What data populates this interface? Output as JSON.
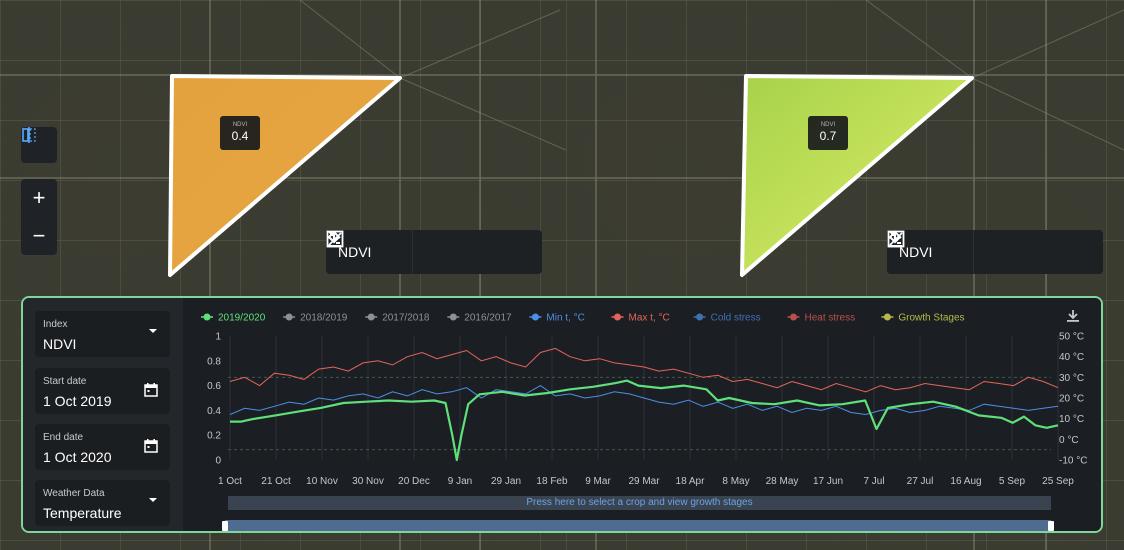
{
  "maps": {
    "left": {
      "badge_label": "NDVI",
      "badge_value": "0.4",
      "layer": "NDVI"
    },
    "right": {
      "badge_label": "NDVI",
      "badge_value": "0.7",
      "layer": "NDVI"
    }
  },
  "icons": {
    "compare": "compare-split-icon",
    "zoom_in": "plus-icon",
    "zoom_out": "minus-icon",
    "image": "image-edit-icon",
    "download": "download-icon",
    "collapse": "chevron-up-icon",
    "dropdown": "chevron-down-icon",
    "calendar": "calendar-icon"
  },
  "zoom": {
    "in_label": "+",
    "out_label": "−"
  },
  "sidebar": {
    "index": {
      "label": "Index",
      "value": "NDVI"
    },
    "start_date": {
      "label": "Start date",
      "value": "1 Oct 2019"
    },
    "end_date": {
      "label": "End date",
      "value": "1 Oct 2020"
    },
    "weather": {
      "label": "Weather Data",
      "value": "Temperature"
    }
  },
  "chart_data": {
    "type": "line",
    "legend": [
      {
        "name": "2019/2020",
        "color": "#5fe07a"
      },
      {
        "name": "2018/2019",
        "color": "#8c9197"
      },
      {
        "name": "2017/2018",
        "color": "#8c9197"
      },
      {
        "name": "2016/2017",
        "color": "#8c9197"
      },
      {
        "name": "Min t, °C",
        "color": "#4d8fe6"
      },
      {
        "name": "Max t, °C",
        "color": "#e5645a"
      },
      {
        "name": "Cold stress",
        "color": "#3f6fb5"
      },
      {
        "name": "Heat stress",
        "color": "#b9504a"
      },
      {
        "name": "Growth Stages",
        "color": "#b7b84a"
      }
    ],
    "x_ticks": [
      "1 Oct",
      "21 Oct",
      "10 Nov",
      "30 Nov",
      "20 Dec",
      "9 Jan",
      "29 Jan",
      "18 Feb",
      "9 Mar",
      "29 Mar",
      "18 Apr",
      "8 May",
      "28 May",
      "17 Jun",
      "7 Jul",
      "27 Jul",
      "16 Aug",
      "5 Sep",
      "25 Sep"
    ],
    "y_ticks_left": [
      "1",
      "0.8",
      "0.6",
      "0.4",
      "0.2",
      "0"
    ],
    "y_ticks_right": [
      "50 °C",
      "40 °C",
      "30 °C",
      "20 °C",
      "10 °C",
      "0 °C",
      "-10 °C"
    ],
    "ylim_left": [
      0,
      1
    ],
    "ylim_right": [
      -10,
      50
    ],
    "series": [
      {
        "name": "2019/2020",
        "axis": "left",
        "color": "#5fe07a",
        "x": [
          0,
          5,
          10,
          20,
          30,
          40,
          50,
          60,
          70,
          80,
          90,
          95,
          98,
          100,
          102,
          105,
          110,
          120,
          130,
          140,
          150,
          160,
          170,
          175,
          180,
          190,
          200,
          210,
          215,
          220,
          230,
          240,
          250,
          260,
          270,
          280,
          285,
          290,
          300,
          310,
          320,
          330,
          340,
          345,
          350,
          355,
          360,
          365
        ],
        "values": [
          0.31,
          0.31,
          0.33,
          0.36,
          0.39,
          0.42,
          0.46,
          0.47,
          0.48,
          0.47,
          0.48,
          0.46,
          0.2,
          0.0,
          0.2,
          0.45,
          0.53,
          0.55,
          0.52,
          0.54,
          0.57,
          0.59,
          0.62,
          0.64,
          0.6,
          0.58,
          0.6,
          0.57,
          0.48,
          0.5,
          0.46,
          0.45,
          0.48,
          0.44,
          0.45,
          0.48,
          0.25,
          0.42,
          0.45,
          0.47,
          0.43,
          0.36,
          0.34,
          0.3,
          0.35,
          0.28,
          0.26,
          0.28
        ]
      },
      {
        "name": "Min t, °C",
        "axis": "right",
        "values": [
          12,
          15,
          14,
          16,
          18,
          17,
          20,
          19,
          21,
          22,
          20,
          23,
          21,
          24,
          22,
          23,
          25,
          20,
          24,
          23,
          22,
          26,
          21,
          22,
          20,
          21,
          23,
          22,
          20,
          18,
          17,
          19,
          16,
          18,
          15,
          17,
          14,
          16,
          13,
          15,
          14,
          16,
          13,
          12,
          14,
          15,
          13,
          14,
          16,
          15,
          14,
          17,
          16,
          15,
          14,
          15,
          16
        ]
      },
      {
        "name": "Max t, °C",
        "axis": "right",
        "values": [
          28,
          30,
          26,
          32,
          31,
          29,
          34,
          35,
          33,
          37,
          38,
          36,
          40,
          42,
          39,
          41,
          43,
          38,
          40,
          37,
          35,
          42,
          44,
          40,
          38,
          39,
          37,
          36,
          35,
          33,
          34,
          32,
          30,
          31,
          28,
          29,
          27,
          25,
          28,
          26,
          24,
          27,
          25,
          23,
          26,
          24,
          25,
          27,
          26,
          25,
          24,
          28,
          27,
          26,
          30,
          28,
          25
        ]
      }
    ]
  },
  "crop_bar_text": "Press here to select a crop and view growth stages"
}
